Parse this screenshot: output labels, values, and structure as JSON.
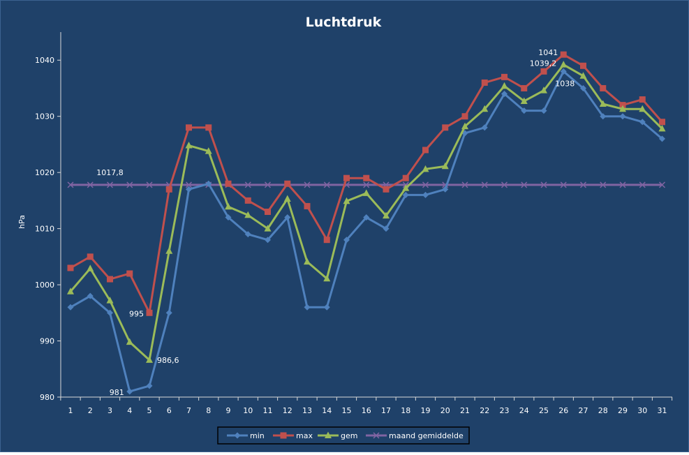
{
  "chart_data": {
    "type": "line",
    "title": "Luchtdruk",
    "xlabel": "",
    "ylabel": "hPa",
    "ylim": [
      980,
      1045
    ],
    "yticks": [
      980,
      990,
      1000,
      1010,
      1020,
      1030,
      1040
    ],
    "categories": [
      "1",
      "2",
      "3",
      "4",
      "5",
      "6",
      "7",
      "8",
      "9",
      "10",
      "11",
      "12",
      "13",
      "14",
      "15",
      "16",
      "17",
      "18",
      "19",
      "20",
      "21",
      "22",
      "23",
      "24",
      "25",
      "26",
      "27",
      "28",
      "29",
      "30",
      "31"
    ],
    "grid": false,
    "legend_position": "bottom",
    "series": [
      {
        "name": "min",
        "color": "#4f81bd",
        "marker": "diamond",
        "values": [
          996,
          998,
          995,
          981,
          982,
          995,
          1017,
          1018,
          1012,
          1009,
          1008,
          1012,
          996,
          996,
          1008,
          1012,
          1010,
          1016,
          1016,
          1017,
          1027,
          1028,
          1034,
          1031,
          1031,
          1038,
          1035,
          1030,
          1030,
          1029,
          1026
        ]
      },
      {
        "name": "max",
        "color": "#c0504d",
        "marker": "square",
        "values": [
          1003,
          1005,
          1001,
          1002,
          995,
          1017,
          1028,
          1028,
          1018,
          1015,
          1013,
          1018,
          1014,
          1008,
          1019,
          1019,
          1017,
          1019,
          1024,
          1028,
          1030,
          1036,
          1037,
          1035,
          1038,
          1041,
          1039,
          1035,
          1032,
          1033,
          1029
        ]
      },
      {
        "name": "gem",
        "color": "#9bbb59",
        "marker": "triangle",
        "values": [
          998.8,
          1002.9,
          997.2,
          989.8,
          986.6,
          1006,
          1024.8,
          1023.8,
          1013.9,
          1012.4,
          1010,
          1015.3,
          1004.1,
          1001.1,
          1014.9,
          1016.3,
          1012.3,
          1017.2,
          1020.6,
          1021.1,
          1028.2,
          1031.3,
          1035.4,
          1032.7,
          1034.6,
          1039.2,
          1037.2,
          1032.2,
          1031.3,
          1031.3,
          1027.8
        ]
      },
      {
        "name": "maand gemiddelde",
        "color": "#8064a2",
        "marker": "x",
        "values": [
          1017.8,
          1017.8,
          1017.8,
          1017.8,
          1017.8,
          1017.8,
          1017.8,
          1017.8,
          1017.8,
          1017.8,
          1017.8,
          1017.8,
          1017.8,
          1017.8,
          1017.8,
          1017.8,
          1017.8,
          1017.8,
          1017.8,
          1017.8,
          1017.8,
          1017.8,
          1017.8,
          1017.8,
          1017.8,
          1017.8,
          1017.8,
          1017.8,
          1017.8,
          1017.8,
          1017.8
        ]
      }
    ],
    "annotations": [
      {
        "text": "1017,8",
        "series": 3,
        "index": 2,
        "anchor": "above"
      },
      {
        "text": "995",
        "series": 1,
        "index": 4,
        "anchor": "left"
      },
      {
        "text": "986,6",
        "series": 2,
        "index": 4,
        "anchor": "right"
      },
      {
        "text": "981",
        "series": 0,
        "index": 3,
        "anchor": "left"
      },
      {
        "text": "1041",
        "series": 1,
        "index": 25,
        "anchor": "left"
      },
      {
        "text": "1039,2",
        "series": 2,
        "index": 25,
        "anchor": "left"
      },
      {
        "text": "1038",
        "series": 0,
        "index": 25,
        "anchor": "below"
      }
    ],
    "colors": {
      "background": "#1f4169",
      "frame": "#3c6390",
      "text": "#ffffff",
      "axis": "#d9d9d9",
      "legend_border": "#000000"
    }
  }
}
